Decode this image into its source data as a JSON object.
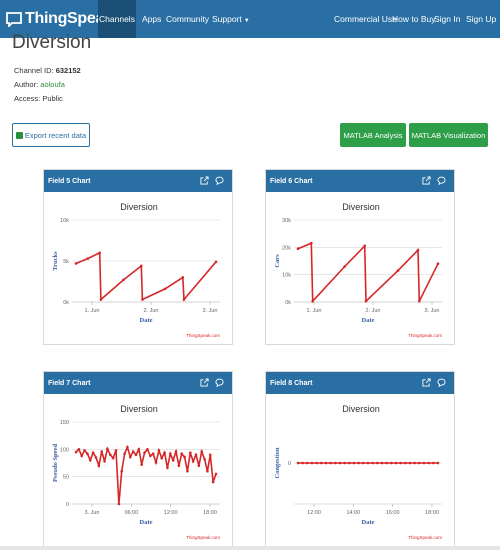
{
  "navbar": {
    "brand": "ThingSpeak",
    "brand_tm": "™",
    "items": [
      {
        "label": "Channels",
        "active": true
      },
      {
        "label": "Apps"
      },
      {
        "label": "Community"
      },
      {
        "label": "Support"
      },
      {
        "label": "Commercial Use"
      },
      {
        "label": "How to Buy"
      },
      {
        "label": "Sign In"
      },
      {
        "label": "Sign Up"
      }
    ]
  },
  "channel": {
    "title": "Diversion",
    "id_label": "Channel ID:",
    "id_value": "632152",
    "author_label": "Author:",
    "author_value": "aoloufa",
    "access_label": "Access:",
    "access_value": "Public"
  },
  "buttons": {
    "export": "Export recent data",
    "matlab_analysis": "MATLAB Analysis",
    "matlab_visualization": "MATLAB Visualization"
  },
  "colors": {
    "navbar": "#2a6fa4",
    "panel_header": "#2a6fa4",
    "series": "#d62728",
    "button_green": "#2e9e48"
  },
  "charts": [
    {
      "header": "Field 5 Chart",
      "credit": "ThingSpeak.com"
    },
    {
      "header": "Field 6 Chart",
      "credit": "ThingSpeak.com"
    },
    {
      "header": "Field 7 Chart",
      "credit": "ThingSpeak.com"
    },
    {
      "header": "Field 8 Chart",
      "credit": "ThingSpeak.com"
    }
  ],
  "chart_data": [
    {
      "type": "line",
      "title": "Diversion",
      "xlabel": "Date",
      "ylabel": "Trucks",
      "yticks": [
        "0k",
        "5k",
        "10k"
      ],
      "ylim": [
        0,
        10000
      ],
      "xticks": [
        "1. Jun",
        "2. Jun",
        "3. Jun"
      ],
      "x": [
        0,
        0.1,
        0.2,
        0.21,
        0.4,
        0.55,
        0.56,
        0.75,
        0.9,
        0.91,
        1.18
      ],
      "y": [
        4700,
        5300,
        6000,
        300,
        2700,
        4400,
        300,
        1600,
        3000,
        300,
        4900
      ]
    },
    {
      "type": "line",
      "title": "Diversion",
      "xlabel": "Date",
      "ylabel": "Cars",
      "yticks": [
        "0k",
        "10k",
        "20k",
        "30k"
      ],
      "ylim": [
        0,
        30000
      ],
      "xticks": [
        "1. Jun",
        "2. Jun",
        "3. Jun"
      ],
      "x": [
        0,
        0.1,
        0.11,
        0.35,
        0.5,
        0.51,
        0.75,
        0.9,
        0.91,
        1.05
      ],
      "y": [
        19500,
        21500,
        300,
        13000,
        20500,
        300,
        11500,
        19000,
        300,
        14000
      ]
    },
    {
      "type": "line",
      "title": "Diversion",
      "xlabel": "Date",
      "ylabel": "Pseudo Speed",
      "yticks": [
        "0",
        "50",
        "100",
        "150"
      ],
      "ylim": [
        0,
        150
      ],
      "xticks": [
        "3. Jun",
        "06:00",
        "12:00",
        "18:00"
      ],
      "x": [
        0,
        1,
        2,
        3,
        4,
        5,
        6,
        7,
        8,
        9,
        10,
        11,
        12,
        13,
        14,
        15,
        16,
        17,
        18,
        19,
        20,
        21,
        22,
        23,
        24,
        25,
        26,
        27,
        28,
        29,
        30,
        31,
        32,
        33,
        34,
        35,
        36,
        37,
        38,
        39,
        40,
        41,
        42,
        43,
        44,
        45,
        46,
        47,
        48,
        49
      ],
      "y": [
        95,
        100,
        88,
        98,
        92,
        80,
        94,
        85,
        70,
        96,
        78,
        101,
        90,
        84,
        98,
        0,
        60,
        92,
        104,
        86,
        96,
        90,
        100,
        72,
        94,
        100,
        88,
        92,
        76,
        98,
        84,
        94,
        66,
        92,
        80,
        96,
        70,
        92,
        86,
        60,
        94,
        78,
        90,
        70,
        96,
        82,
        60,
        90,
        40,
        55
      ]
    },
    {
      "type": "line",
      "title": "Diversion",
      "xlabel": "Date",
      "ylabel": "Congestion",
      "yticks": [
        "0"
      ],
      "ylim": [
        -1,
        1
      ],
      "xticks": [
        "12:00",
        "14:00",
        "16:00",
        "18:00"
      ],
      "x": [
        0,
        1,
        2,
        3,
        4,
        5,
        6,
        7,
        8,
        9,
        10,
        11,
        12,
        13,
        14,
        15,
        16,
        17,
        18,
        19,
        20,
        21,
        22,
        23,
        24,
        25,
        26,
        27,
        28,
        29,
        30
      ],
      "y": [
        0,
        0,
        0,
        0,
        0,
        0,
        0,
        0,
        0,
        0,
        0,
        0,
        0,
        0,
        0,
        0,
        0,
        0,
        0,
        0,
        0,
        0,
        0,
        0,
        0,
        0,
        0,
        0,
        0,
        0,
        0
      ]
    }
  ]
}
